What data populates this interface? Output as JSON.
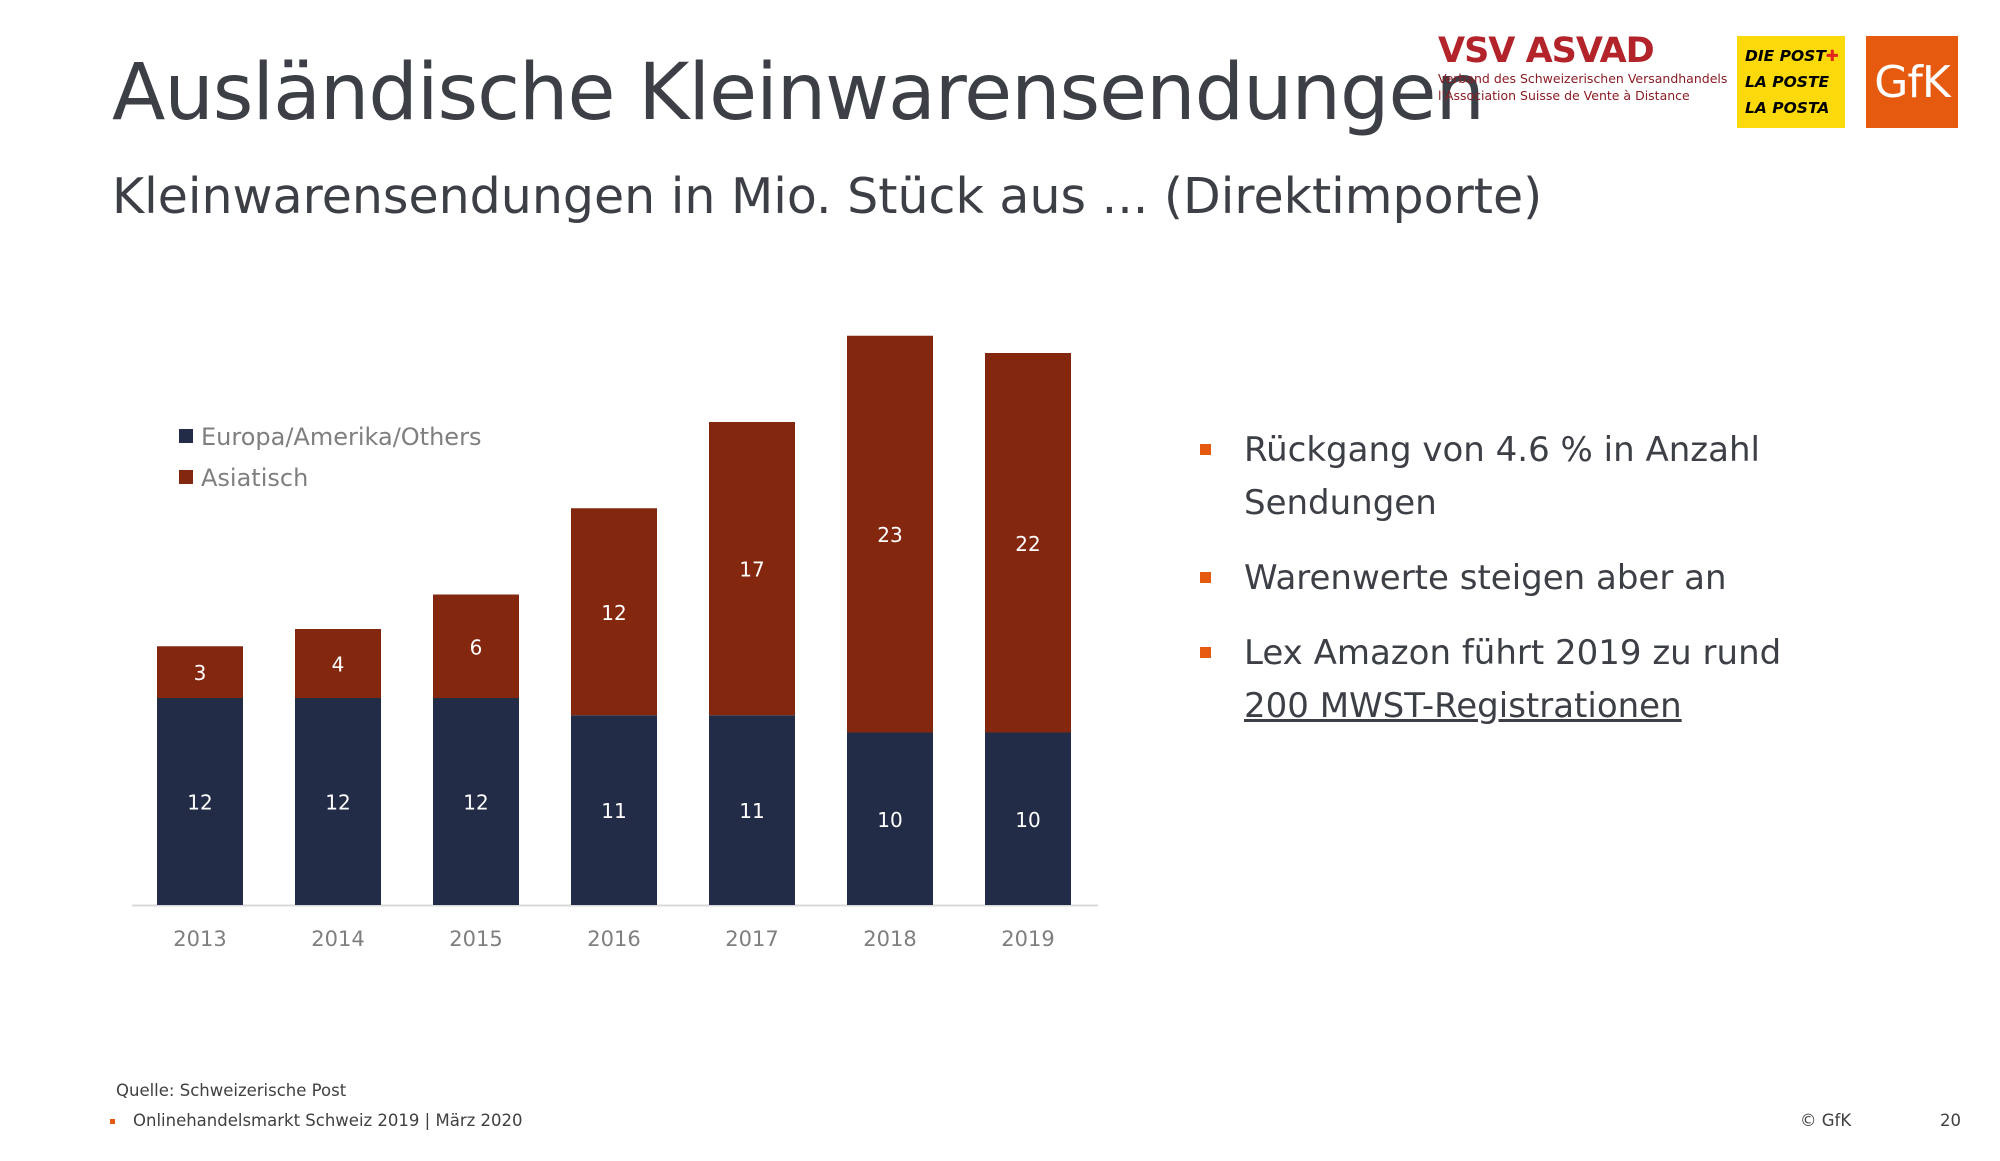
{
  "slide": {
    "title": "Ausländische Kleinwarensendungen",
    "subtitle": "Kleinwarensendungen in Mio. Stück aus ... (Direktimporte)"
  },
  "logos": {
    "vsv_name": "VSV ASVAD",
    "vsv_line1": "Verband des Schweizerischen Versandhandels",
    "vsv_line2": "l'Association Suisse de Vente à Distance",
    "post_line1": "DIE POST",
    "post_line2": "LA POSTE",
    "post_line3": "LA POSTA",
    "gfk": "GfK"
  },
  "bullets": {
    "b1": "Rückgang von 4.6 % in Anzahl Sendungen",
    "b2": "Warenwerte steigen aber an",
    "b3_prefix": "Lex Amazon führt 2019 zu rund ",
    "b3_link": "200 MWST-Registrationen"
  },
  "footer": {
    "source": "Quelle: Schweizerische Post",
    "line": "Onlinehandelsmarkt Schweiz 2019  | März 2020",
    "copyright": "© GfK",
    "page": "20"
  },
  "colors": {
    "europa": "#222c46",
    "asiatisch": "#84270f",
    "accent": "#e55a0f"
  },
  "chart_data": {
    "type": "bar",
    "stacked": true,
    "categories": [
      "2013",
      "2014",
      "2015",
      "2016",
      "2017",
      "2018",
      "2019"
    ],
    "series": [
      {
        "name": "Europa/Amerika/Others",
        "values": [
          12,
          12,
          12,
          11,
          11,
          10,
          10
        ]
      },
      {
        "name": "Asiatisch",
        "values": [
          3,
          4,
          6,
          12,
          17,
          23,
          22
        ]
      }
    ],
    "legend_position": "top-left",
    "grid": false,
    "y_axis_visible": false,
    "ylim": [
      0,
      33
    ]
  }
}
